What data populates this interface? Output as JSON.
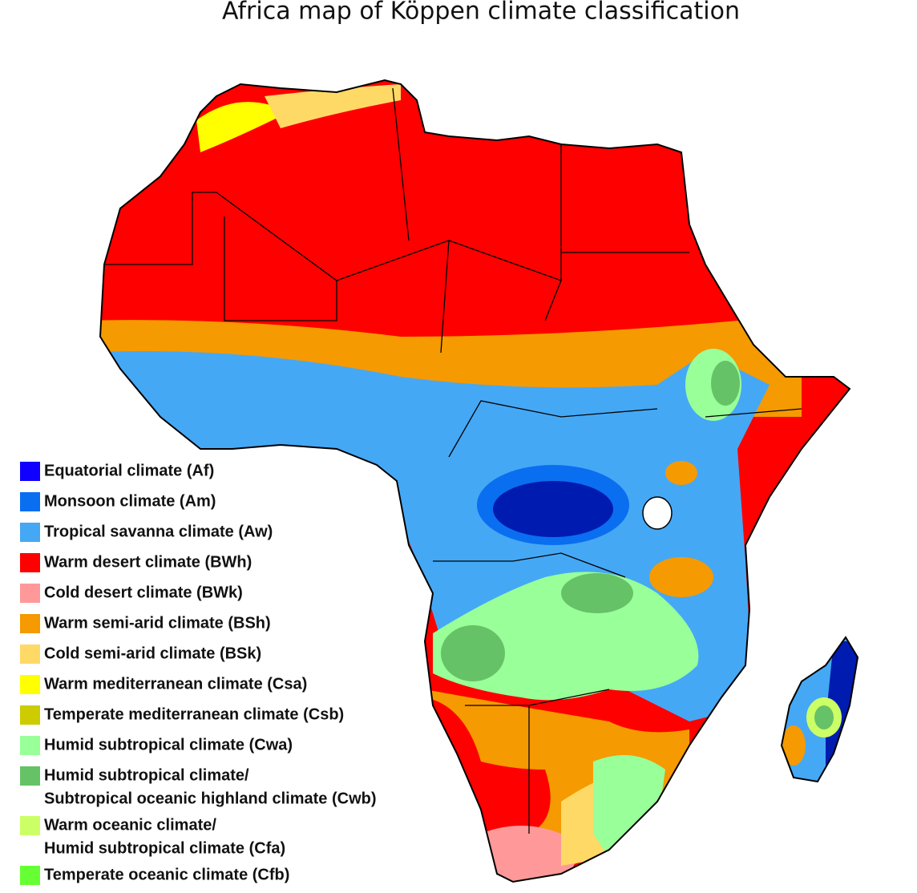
{
  "title": "Africa map of Köppen climate classification",
  "legend": [
    {
      "lines": [
        "Equatorial climate (Af)"
      ],
      "color": "#0f00ff"
    },
    {
      "lines": [
        "Monsoon climate (Am)"
      ],
      "color": "#0a6ef0"
    },
    {
      "lines": [
        "Tropical savanna climate (Aw)"
      ],
      "color": "#45a8f5"
    },
    {
      "lines": [
        "Warm desert climate (BWh)"
      ],
      "color": "#ff0000"
    },
    {
      "lines": [
        "Cold desert climate (BWk)"
      ],
      "color": "#ff9999"
    },
    {
      "lines": [
        "Warm semi-arid climate (BSh)"
      ],
      "color": "#f59a00"
    },
    {
      "lines": [
        "Cold semi-arid climate (BSk)"
      ],
      "color": "#ffd966"
    },
    {
      "lines": [
        "Warm mediterranean climate (Csa)"
      ],
      "color": "#ffff00"
    },
    {
      "lines": [
        "Temperate mediterranean climate (Csb)"
      ],
      "color": "#cccc00"
    },
    {
      "lines": [
        "Humid subtropical climate (Cwa)"
      ],
      "color": "#99ff99"
    },
    {
      "lines": [
        "Humid subtropical climate/",
        "Subtropical oceanic highland climate (Cwb)"
      ],
      "color": "#66c266"
    },
    {
      "lines": [
        "Warm oceanic climate/",
        "Humid subtropical climate (Cfa)"
      ],
      "color": "#ccff66"
    },
    {
      "lines": [
        "Temperate oceanic climate (Cfb)"
      ],
      "color": "#66ff33"
    }
  ]
}
